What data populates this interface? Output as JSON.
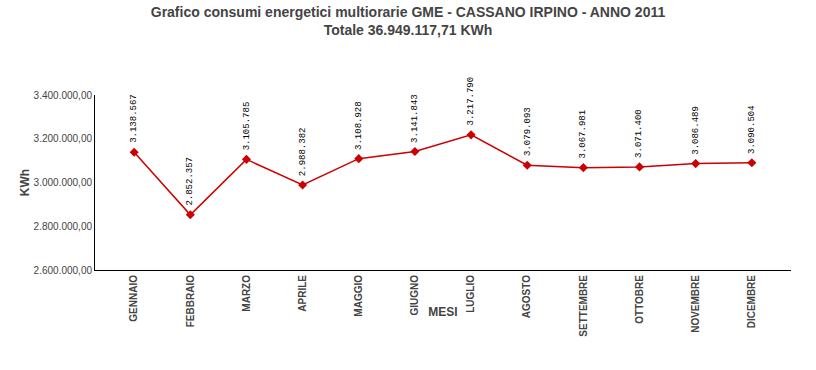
{
  "chart_data": {
    "type": "line",
    "title": "Grafico consumi energetici multiorarie GME - CASSANO IRPINO - ANNO 2011",
    "subtitle": "Totale 36.949.117,71 KWh",
    "xlabel": "MESI",
    "ylabel": "KWh",
    "categories": [
      "GENNAIO",
      "FEBBRAIO",
      "MARZO",
      "APRILE",
      "MAGGIO",
      "GIUGNO",
      "LUGLIO",
      "AGOSTO",
      "SETTEMBRE",
      "OTTOBRE",
      "NOVEMBRE",
      "DICEMBRE"
    ],
    "values": [
      3138567,
      2852357,
      3105785,
      2988382,
      3108928,
      3141843,
      3217790,
      3079093,
      3067981,
      3071400,
      3086489,
      3090504
    ],
    "value_labels": [
      "3.138.567",
      "2.852.357",
      "3.105.785",
      "2.988.382",
      "3.108.928",
      "3.141.843",
      "3.217.790",
      "3.079.093",
      "3.067.981",
      "3.071.400",
      "3.086.489",
      "3.090.504"
    ],
    "data_labels": true,
    "color": "#cc0000",
    "marker": "diamond",
    "ylim": [
      2600000,
      3400000
    ],
    "yticks": [
      {
        "value": 2600000,
        "label": "2.600.000,00"
      },
      {
        "value": 2800000,
        "label": "2.800.000,00"
      },
      {
        "value": 3000000,
        "label": "3.000.000,00"
      },
      {
        "value": 3200000,
        "label": "3.200.000,00"
      },
      {
        "value": 3400000,
        "label": "3.400.000,00"
      }
    ],
    "grid": false
  }
}
